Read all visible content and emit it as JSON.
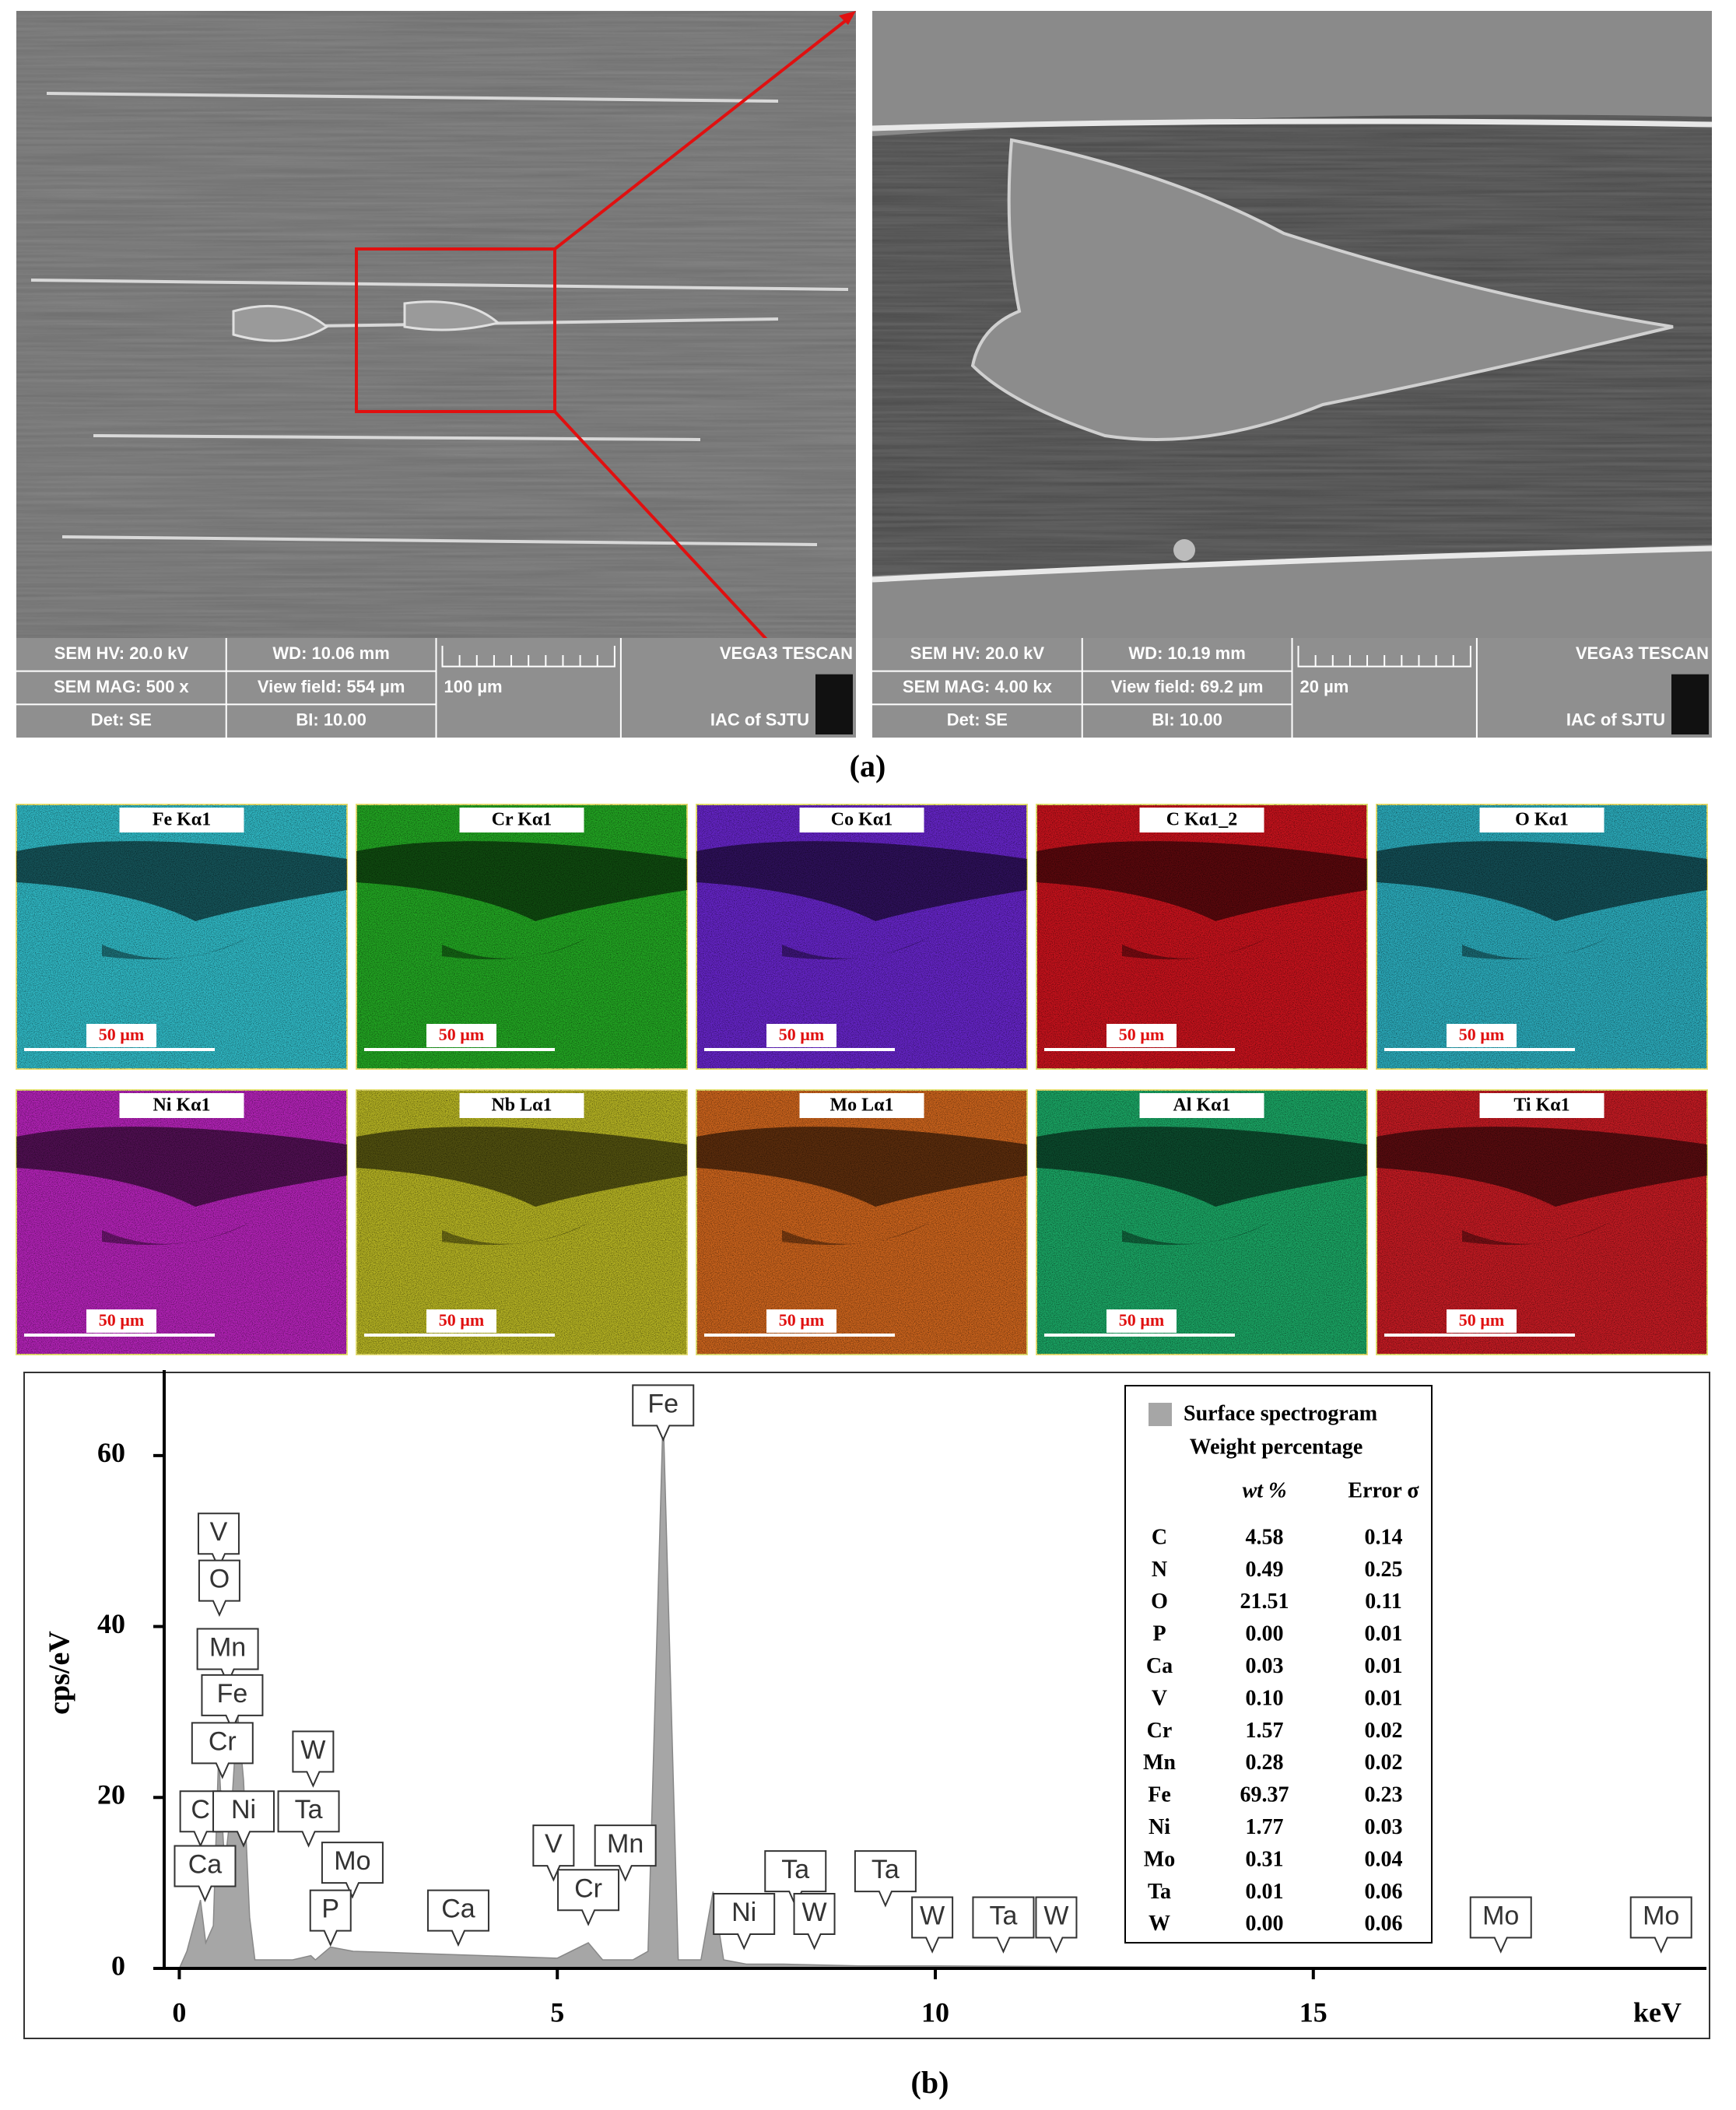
{
  "sem_panels": [
    {
      "hv": "SEM HV: 20.0 kV",
      "wd": "WD: 10.06 mm",
      "brand": "VEGA3 TESCAN",
      "mag": "SEM MAG: 500 x",
      "view_field": "View field: 554 µm",
      "scale": "100 µm",
      "det": "Det: SE",
      "bi": "BI: 10.00",
      "lab": "IAC of SJTU"
    },
    {
      "hv": "SEM HV: 20.0 kV",
      "wd": "WD: 10.19 mm",
      "brand": "VEGA3 TESCAN",
      "mag": "SEM MAG: 4.00 kx",
      "view_field": "View field: 69.2 µm",
      "scale": "20 µm",
      "det": "Det: SE",
      "bi": "BI: 10.00",
      "lab": "IAC of SJTU"
    }
  ],
  "label_a": "(a)",
  "eds_maps": [
    {
      "title": "Fe Kα1",
      "color": "#2fb6c2",
      "scale": "50 µm"
    },
    {
      "title": "Cr Kα1",
      "color": "#22a322",
      "scale": "50 µm"
    },
    {
      "title": "Co Kα1",
      "color": "#6424c4",
      "scale": "50 µm"
    },
    {
      "title": "C Kα1_2",
      "color": "#c4121c",
      "scale": "50 µm"
    },
    {
      "title": "O Kα1",
      "color": "#2aa8b8",
      "scale": "50 µm"
    },
    {
      "title": "Ni Kα1",
      "color": "#b022b4",
      "scale": "50 µm"
    },
    {
      "title": "Nb Lα1",
      "color": "#b2b022",
      "scale": "50 µm"
    },
    {
      "title": "Mo Lα1",
      "color": "#c8621c",
      "scale": "50 µm"
    },
    {
      "title": "Al Kα1",
      "color": "#1aa262",
      "scale": "50 µm"
    },
    {
      "title": "Ti Kα1",
      "color": "#c01a22",
      "scale": "50 µm"
    }
  ],
  "chart_data": {
    "type": "area",
    "x_label": "keV",
    "y_label": "cps/eV",
    "xlim": [
      -0.2,
      20.2
    ],
    "ylim": [
      0,
      70
    ],
    "xticks": [
      0,
      5,
      10,
      15
    ],
    "yticks": [
      0,
      20,
      40,
      60
    ],
    "x": [
      0,
      0.1,
      0.28,
      0.35,
      0.45,
      0.52,
      0.6,
      0.7,
      0.77,
      0.85,
      0.93,
      1.0,
      1.5,
      1.74,
      1.8,
      2.0,
      2.3,
      3,
      4,
      5,
      5.41,
      5.6,
      6.0,
      6.2,
      6.4,
      6.6,
      6.9,
      7.06,
      7.2,
      7.5,
      8,
      9,
      10,
      12,
      15,
      18,
      20.2
    ],
    "series": [
      {
        "name": "Surface spectrogram",
        "color": "#a6a6a6",
        "values": [
          0,
          2,
          8,
          3,
          5,
          25,
          12,
          20,
          30,
          22,
          6,
          1,
          1,
          1.5,
          1,
          2.5,
          2,
          1.8,
          1.5,
          1.2,
          3,
          1,
          1,
          2,
          65,
          1,
          1,
          9,
          1,
          0.5,
          0.5,
          0.3,
          0.3,
          0.2,
          0.1,
          0.1,
          0
        ]
      }
    ],
    "annotations": [
      {
        "text": "Fe",
        "x": 6.4,
        "y": 63.5
      },
      {
        "text": "V",
        "x": 0.52,
        "y": 48.5
      },
      {
        "text": "O",
        "x": 0.53,
        "y": 43
      },
      {
        "text": "Mn",
        "x": 0.64,
        "y": 35
      },
      {
        "text": "Fe",
        "x": 0.7,
        "y": 29.6
      },
      {
        "text": "Cr",
        "x": 0.57,
        "y": 24
      },
      {
        "text": "C",
        "x": 0.28,
        "y": 16
      },
      {
        "text": "Ni",
        "x": 0.85,
        "y": 16
      },
      {
        "text": "Ca",
        "x": 0.34,
        "y": 9.6
      },
      {
        "text": "W",
        "x": 1.77,
        "y": 23
      },
      {
        "text": "Ta",
        "x": 1.71,
        "y": 16
      },
      {
        "text": "Mo",
        "x": 2.29,
        "y": 10
      },
      {
        "text": "P",
        "x": 2.0,
        "y": 4.4
      },
      {
        "text": "Ca",
        "x": 3.69,
        "y": 4.4
      },
      {
        "text": "V",
        "x": 4.95,
        "y": 12
      },
      {
        "text": "Cr",
        "x": 5.41,
        "y": 6.8
      },
      {
        "text": "Mn",
        "x": 5.9,
        "y": 12
      },
      {
        "text": "Ni",
        "x": 7.47,
        "y": 4
      },
      {
        "text": "Ta",
        "x": 8.15,
        "y": 9
      },
      {
        "text": "W",
        "x": 8.4,
        "y": 4
      },
      {
        "text": "Ta",
        "x": 9.34,
        "y": 9
      },
      {
        "text": "W",
        "x": 9.96,
        "y": 3.6
      },
      {
        "text": "Ta",
        "x": 10.9,
        "y": 3.6
      },
      {
        "text": "W",
        "x": 11.6,
        "y": 3.6
      },
      {
        "text": "Mo",
        "x": 17.48,
        "y": 3.6
      },
      {
        "text": "Mo",
        "x": 19.6,
        "y": 3.6
      }
    ],
    "table": {
      "title": "Weight percentage",
      "columns": [
        "wt %",
        "Error σ"
      ],
      "rows": [
        [
          "C",
          "4.58",
          "0.14"
        ],
        [
          "N",
          "0.49",
          "0.25"
        ],
        [
          "O",
          "21.51",
          "0.11"
        ],
        [
          "P",
          "0.00",
          "0.01"
        ],
        [
          "Ca",
          "0.03",
          "0.01"
        ],
        [
          "V",
          "0.10",
          "0.01"
        ],
        [
          "Cr",
          "1.57",
          "0.02"
        ],
        [
          "Mn",
          "0.28",
          "0.02"
        ],
        [
          "Fe",
          "69.37",
          "0.23"
        ],
        [
          "Ni",
          "1.77",
          "0.03"
        ],
        [
          "Mo",
          "0.31",
          "0.04"
        ],
        [
          "Ta",
          "0.01",
          "0.06"
        ],
        [
          "W",
          "0.00",
          "0.06"
        ]
      ]
    }
  },
  "label_b": "(b)"
}
